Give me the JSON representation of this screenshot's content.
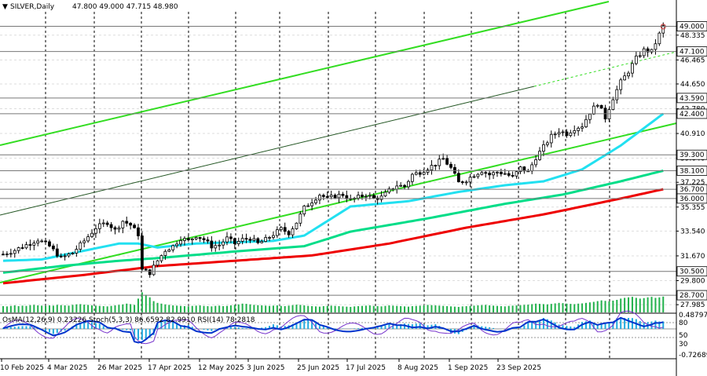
{
  "header": {
    "symbol": "SILVER,Daily",
    "ohlc": "47.800 49.000 47.715 48.980",
    "arrow": "▼"
  },
  "indicator_header": {
    "text": "OsMA(12,26,9) 0.23226  Stoch(5,3,3) 86.6592 82.9910  RSI(14) 78.2818"
  },
  "colors": {
    "candle": "#000000",
    "volume": "#22b14c",
    "ema_red": "#ee0000",
    "ema_green": "#00dd88",
    "ema_cyan": "#22e0f0",
    "channel_green": "#33dd22",
    "channel_dark": "#225522",
    "osma": "#22aadd",
    "rsi": "#0033cc",
    "stoch": "#7733cc",
    "grid": "#000000"
  },
  "chart_data": {
    "type": "candlestick",
    "title": "SILVER,Daily",
    "ylim": [
      27.4,
      50.1
    ],
    "price_ticks": [
      "48.335",
      "46.465",
      "44.650",
      "42.780",
      "40.910",
      "39.040",
      "37.225",
      "35.355",
      "33.540",
      "31.670",
      "29.800",
      "27.985"
    ],
    "level_boxes": [
      "49.000",
      "47.100",
      "43.590",
      "42.400",
      "39.300",
      "38.100",
      "36.700",
      "36.000",
      "30.500",
      "28.700"
    ],
    "x_labels": [
      "10 Feb 2025",
      "4 Mar 2025",
      "26 Mar 2025",
      "17 Apr 2025",
      "12 May 2025",
      "3 Jun 2025",
      "25 Jun 2025",
      "17 Jul 2025",
      "8 Aug 2025",
      "1 Sep 2025",
      "23 Sep 2025"
    ],
    "anchors": [
      [
        0,
        31.8
      ],
      [
        3,
        32.1
      ],
      [
        6,
        32.5
      ],
      [
        9,
        32.9
      ],
      [
        12,
        32.4
      ],
      [
        15,
        31.5
      ],
      [
        18,
        31.9
      ],
      [
        21,
        32.8
      ],
      [
        24,
        33.8
      ],
      [
        27,
        34.2
      ],
      [
        29,
        33.6
      ],
      [
        31,
        34.3
      ],
      [
        33,
        34.0
      ],
      [
        35,
        33.3
      ],
      [
        36,
        30.6
      ],
      [
        38,
        30.4
      ],
      [
        40,
        31.3
      ],
      [
        42,
        32.1
      ],
      [
        44,
        32.4
      ],
      [
        46,
        33.0
      ],
      [
        48,
        32.8
      ],
      [
        50,
        33.2
      ],
      [
        52,
        32.9
      ],
      [
        54,
        32.4
      ],
      [
        56,
        32.5
      ],
      [
        58,
        33.0
      ],
      [
        60,
        32.6
      ],
      [
        62,
        32.9
      ],
      [
        64,
        33.0
      ],
      [
        66,
        32.6
      ],
      [
        68,
        32.9
      ],
      [
        70,
        33.3
      ],
      [
        72,
        33.7
      ],
      [
        74,
        33.4
      ],
      [
        76,
        34.2
      ],
      [
        78,
        35.3
      ],
      [
        80,
        35.8
      ],
      [
        82,
        36.3
      ],
      [
        84,
        36.0
      ],
      [
        86,
        36.2
      ],
      [
        88,
        36.3
      ],
      [
        90,
        35.9
      ],
      [
        92,
        36.1
      ],
      [
        94,
        36.3
      ],
      [
        96,
        36.0
      ],
      [
        98,
        36.1
      ],
      [
        100,
        36.6
      ],
      [
        102,
        37.0
      ],
      [
        104,
        36.9
      ],
      [
        106,
        37.8
      ],
      [
        108,
        38.0
      ],
      [
        110,
        38.3
      ],
      [
        112,
        38.6
      ],
      [
        114,
        39.0
      ],
      [
        116,
        38.3
      ],
      [
        118,
        37.2
      ],
      [
        120,
        37.4
      ],
      [
        122,
        37.8
      ],
      [
        124,
        38.1
      ],
      [
        126,
        37.8
      ],
      [
        128,
        38.0
      ],
      [
        130,
        37.9
      ],
      [
        132,
        37.6
      ],
      [
        134,
        38.3
      ],
      [
        136,
        38.0
      ],
      [
        138,
        39.1
      ],
      [
        140,
        39.9
      ],
      [
        142,
        40.7
      ],
      [
        144,
        41.1
      ],
      [
        146,
        40.9
      ],
      [
        148,
        41.3
      ],
      [
        150,
        41.5
      ],
      [
        152,
        42.5
      ],
      [
        154,
        43.2
      ],
      [
        156,
        42.1
      ],
      [
        158,
        43.6
      ],
      [
        160,
        44.8
      ],
      [
        162,
        45.6
      ],
      [
        164,
        46.6
      ],
      [
        166,
        47.2
      ],
      [
        168,
        47.1
      ],
      [
        170,
        48.4
      ],
      [
        171,
        48.98
      ]
    ],
    "ema_red": [
      [
        0,
        29.6
      ],
      [
        20,
        30.2
      ],
      [
        40,
        30.9
      ],
      [
        60,
        31.3
      ],
      [
        80,
        31.7
      ],
      [
        100,
        32.6
      ],
      [
        120,
        33.8
      ],
      [
        140,
        34.8
      ],
      [
        160,
        36.0
      ],
      [
        171,
        36.7
      ]
    ],
    "ema_green": [
      [
        0,
        30.4
      ],
      [
        15,
        30.9
      ],
      [
        30,
        31.3
      ],
      [
        40,
        31.5
      ],
      [
        60,
        32.0
      ],
      [
        78,
        32.4
      ],
      [
        90,
        33.5
      ],
      [
        110,
        34.5
      ],
      [
        130,
        35.6
      ],
      [
        145,
        36.3
      ],
      [
        160,
        37.3
      ],
      [
        171,
        38.1
      ]
    ],
    "ema_cyan": [
      [
        0,
        31.3
      ],
      [
        10,
        31.4
      ],
      [
        20,
        32.0
      ],
      [
        30,
        32.6
      ],
      [
        35,
        32.6
      ],
      [
        40,
        32.3
      ],
      [
        50,
        32.6
      ],
      [
        70,
        32.8
      ],
      [
        78,
        33.2
      ],
      [
        90,
        35.4
      ],
      [
        105,
        35.8
      ],
      [
        118,
        36.5
      ],
      [
        130,
        37.0
      ],
      [
        140,
        37.3
      ],
      [
        150,
        38.2
      ],
      [
        160,
        40.0
      ],
      [
        171,
        42.4
      ]
    ],
    "volume": [
      25,
      24,
      26,
      28,
      25,
      27,
      26,
      29,
      30,
      28,
      27,
      26,
      28,
      27,
      30,
      29,
      28,
      27,
      30,
      32,
      33,
      31,
      30,
      28,
      27,
      26,
      25,
      24,
      26,
      28,
      30,
      32,
      35,
      33,
      30,
      55,
      80,
      70,
      60,
      45,
      38,
      35,
      32,
      30,
      28,
      27,
      26,
      25,
      24,
      26,
      27,
      28,
      26,
      25,
      24,
      26,
      27,
      25,
      26,
      28,
      30,
      32,
      35,
      34,
      32,
      30,
      29,
      28,
      27,
      26,
      27,
      28,
      26,
      25,
      27,
      29,
      31,
      30,
      28,
      26,
      25,
      24,
      23,
      25,
      26,
      27,
      26,
      25,
      24,
      23,
      22,
      24,
      25,
      26,
      27,
      28,
      26,
      25,
      24,
      26,
      28,
      27,
      26,
      25,
      24,
      23,
      25,
      26,
      27,
      28,
      30,
      29,
      28,
      27,
      26,
      25,
      24,
      23,
      22,
      24,
      25,
      26,
      27,
      28,
      29,
      30,
      28,
      27,
      26,
      25,
      24,
      26,
      27,
      28,
      29,
      30,
      31,
      33,
      35,
      34,
      33,
      32,
      34,
      36,
      38,
      37,
      35,
      34,
      33,
      35,
      36,
      38,
      40,
      42,
      45,
      48,
      46,
      44,
      47,
      50,
      55,
      58,
      60,
      62,
      58,
      55,
      57,
      60,
      62,
      58,
      60,
      63
    ]
  }
}
